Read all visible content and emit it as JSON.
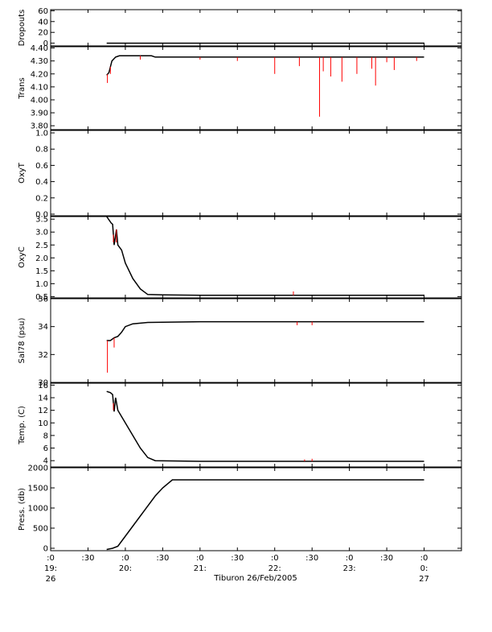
{
  "chart_data": [
    {
      "type": "line",
      "panel": "dropouts",
      "ylabel": "Dropouts",
      "ylim": [
        -5,
        62
      ],
      "ytick_labels": [
        "60",
        "40",
        "20",
        "0"
      ],
      "yticks": [
        60,
        40,
        20,
        0
      ],
      "series": [
        {
          "color": "#000000",
          "points": [
            [
              19.75,
              0
            ],
            [
              24.0,
              0
            ]
          ]
        }
      ]
    },
    {
      "type": "line",
      "panel": "trans",
      "ylabel": "Trans",
      "ylim": [
        3.77,
        4.41
      ],
      "ytick_labels": [
        "4.40",
        "4.30",
        "4.20",
        "4.10",
        "4.00",
        "3.90",
        "3.80"
      ],
      "yticks": [
        4.4,
        4.3,
        4.2,
        4.1,
        4.0,
        3.9,
        3.8
      ],
      "series": [
        {
          "color": "#000000",
          "points": [
            [
              19.75,
              4.19
            ],
            [
              19.78,
              4.21
            ],
            [
              19.82,
              4.3
            ],
            [
              19.87,
              4.33
            ],
            [
              19.92,
              4.34
            ],
            [
              20.35,
              4.34
            ],
            [
              20.4,
              4.33
            ],
            [
              21.0,
              4.33
            ],
            [
              22.0,
              4.33
            ],
            [
              23.0,
              4.33
            ],
            [
              24.0,
              4.33
            ]
          ]
        },
        {
          "color": "#ff0000",
          "spikes": [
            [
              19.76,
              4.13
            ],
            [
              19.8,
              4.2
            ],
            [
              20.2,
              4.31
            ],
            [
              21.0,
              4.31
            ],
            [
              21.5,
              4.3
            ],
            [
              22.0,
              4.2
            ],
            [
              22.33,
              4.26
            ],
            [
              22.6,
              3.87
            ],
            [
              22.65,
              4.22
            ],
            [
              22.75,
              4.18
            ],
            [
              22.9,
              4.14
            ],
            [
              23.1,
              4.2
            ],
            [
              23.3,
              4.24
            ],
            [
              23.35,
              4.11
            ],
            [
              23.5,
              4.29
            ],
            [
              23.6,
              4.23
            ],
            [
              23.9,
              4.3
            ]
          ]
        }
      ]
    },
    {
      "type": "line",
      "panel": "oxyt",
      "ylabel": "OxyT",
      "ylim": [
        -0.02,
        1.03
      ],
      "ytick_labels": [
        "1.0",
        "0.8",
        "0.6",
        "0.4",
        "0.2",
        "0.0"
      ],
      "yticks": [
        1.0,
        0.8,
        0.6,
        0.4,
        0.2,
        0.0
      ],
      "series": []
    },
    {
      "type": "line",
      "panel": "oxyc",
      "ylabel": "OxyC",
      "ylim": [
        0.45,
        3.6
      ],
      "ytick_labels": [
        "3.5",
        "3.0",
        "2.5",
        "2.0",
        "1.5",
        "1.0",
        "0.5"
      ],
      "yticks": [
        3.5,
        3.0,
        2.5,
        2.0,
        1.5,
        1.0,
        0.5
      ],
      "series": [
        {
          "color": "#000000",
          "points": [
            [
              19.75,
              3.6
            ],
            [
              19.81,
              3.35
            ],
            [
              19.83,
              3.3
            ],
            [
              19.85,
              2.5
            ],
            [
              19.88,
              3.1
            ],
            [
              19.9,
              2.5
            ],
            [
              19.95,
              2.3
            ],
            [
              20.0,
              1.8
            ],
            [
              20.1,
              1.2
            ],
            [
              20.2,
              0.8
            ],
            [
              20.3,
              0.58
            ],
            [
              20.5,
              0.57
            ],
            [
              21.0,
              0.55
            ],
            [
              22.0,
              0.55
            ],
            [
              23.0,
              0.55
            ],
            [
              24.0,
              0.55
            ]
          ]
        },
        {
          "color": "#ff0000",
          "spikes": [
            [
              19.84,
              2.6
            ],
            [
              19.88,
              2.6
            ],
            [
              22.25,
              0.7
            ]
          ]
        }
      ]
    },
    {
      "type": "line",
      "panel": "sal78",
      "ylabel": "Sal78 (psu)",
      "ylim": [
        30,
        36
      ],
      "ytick_labels": [
        "36",
        "34",
        "32",
        "30"
      ],
      "yticks": [
        36,
        34,
        32,
        30
      ],
      "series": [
        {
          "color": "#000000",
          "points": [
            [
              19.75,
              33.0
            ],
            [
              19.8,
              33.0
            ],
            [
              19.85,
              33.2
            ],
            [
              19.9,
              33.3
            ],
            [
              19.95,
              33.6
            ],
            [
              20.0,
              34.0
            ],
            [
              20.1,
              34.2
            ],
            [
              20.3,
              34.3
            ],
            [
              21.0,
              34.35
            ],
            [
              22.0,
              34.35
            ],
            [
              23.0,
              34.35
            ],
            [
              24.0,
              34.35
            ]
          ]
        },
        {
          "color": "#ff0000",
          "spikes": [
            [
              19.76,
              30.7
            ],
            [
              19.85,
              32.5
            ],
            [
              22.3,
              34.1
            ],
            [
              22.5,
              34.1
            ]
          ]
        }
      ]
    },
    {
      "type": "line",
      "panel": "temp",
      "ylabel": "Temp. (C)",
      "ylim": [
        3,
        16.3
      ],
      "ytick_labels": [
        "16",
        "14",
        "12",
        "10",
        "8",
        "6",
        "4"
      ],
      "yticks": [
        16,
        14,
        12,
        10,
        8,
        6,
        4
      ],
      "series": [
        {
          "color": "#000000",
          "points": [
            [
              19.75,
              15.0
            ],
            [
              19.8,
              14.8
            ],
            [
              19.83,
              14.5
            ],
            [
              19.85,
              11.8
            ],
            [
              19.87,
              14.0
            ],
            [
              19.9,
              12.0
            ],
            [
              20.0,
              10.0
            ],
            [
              20.1,
              8.0
            ],
            [
              20.2,
              6.0
            ],
            [
              20.3,
              4.5
            ],
            [
              20.4,
              4.0
            ],
            [
              21.0,
              3.9
            ],
            [
              22.0,
              3.9
            ],
            [
              23.0,
              3.9
            ],
            [
              24.0,
              3.9
            ]
          ]
        },
        {
          "color": "#ff0000",
          "spikes": [
            [
              19.84,
              12.0
            ],
            [
              22.4,
              4.2
            ],
            [
              22.5,
              4.3
            ]
          ]
        }
      ]
    },
    {
      "type": "line",
      "panel": "press",
      "ylabel": "Press. (db)",
      "ylim": [
        -60,
        2000
      ],
      "ytick_labels": [
        "2000",
        "1500",
        "1000",
        "500",
        "0"
      ],
      "yticks": [
        2000,
        1500,
        1000,
        500,
        0
      ],
      "series": [
        {
          "color": "#000000",
          "points": [
            [
              19.75,
              -30
            ],
            [
              19.83,
              0
            ],
            [
              19.9,
              50
            ],
            [
              20.0,
              300
            ],
            [
              20.2,
              800
            ],
            [
              20.4,
              1300
            ],
            [
              20.5,
              1500
            ],
            [
              20.63,
              1700
            ],
            [
              21.0,
              1700
            ],
            [
              22.0,
              1700
            ],
            [
              23.0,
              1700
            ],
            [
              24.0,
              1700
            ]
          ]
        }
      ]
    }
  ],
  "x_axis": {
    "xlim": [
      19.0,
      24.5
    ],
    "tick_labels": [
      {
        "x": 19.0,
        "lines": [
          ":0",
          "19:",
          "26"
        ]
      },
      {
        "x": 19.5,
        "lines": [
          ":30"
        ]
      },
      {
        "x": 20.0,
        "lines": [
          ":0",
          "20:"
        ]
      },
      {
        "x": 20.5,
        "lines": [
          ":30"
        ]
      },
      {
        "x": 21.0,
        "lines": [
          ":0",
          "21:"
        ]
      },
      {
        "x": 21.5,
        "lines": [
          ":30"
        ]
      },
      {
        "x": 22.0,
        "lines": [
          ":0",
          "22:"
        ]
      },
      {
        "x": 22.5,
        "lines": [
          ":30"
        ]
      },
      {
        "x": 23.0,
        "lines": [
          ":0",
          "23:"
        ]
      },
      {
        "x": 23.5,
        "lines": [
          ":30"
        ]
      },
      {
        "x": 24.0,
        "lines": [
          ":0",
          "0:",
          "27"
        ]
      }
    ],
    "title": "Tiburon 26/Feb/2005"
  }
}
